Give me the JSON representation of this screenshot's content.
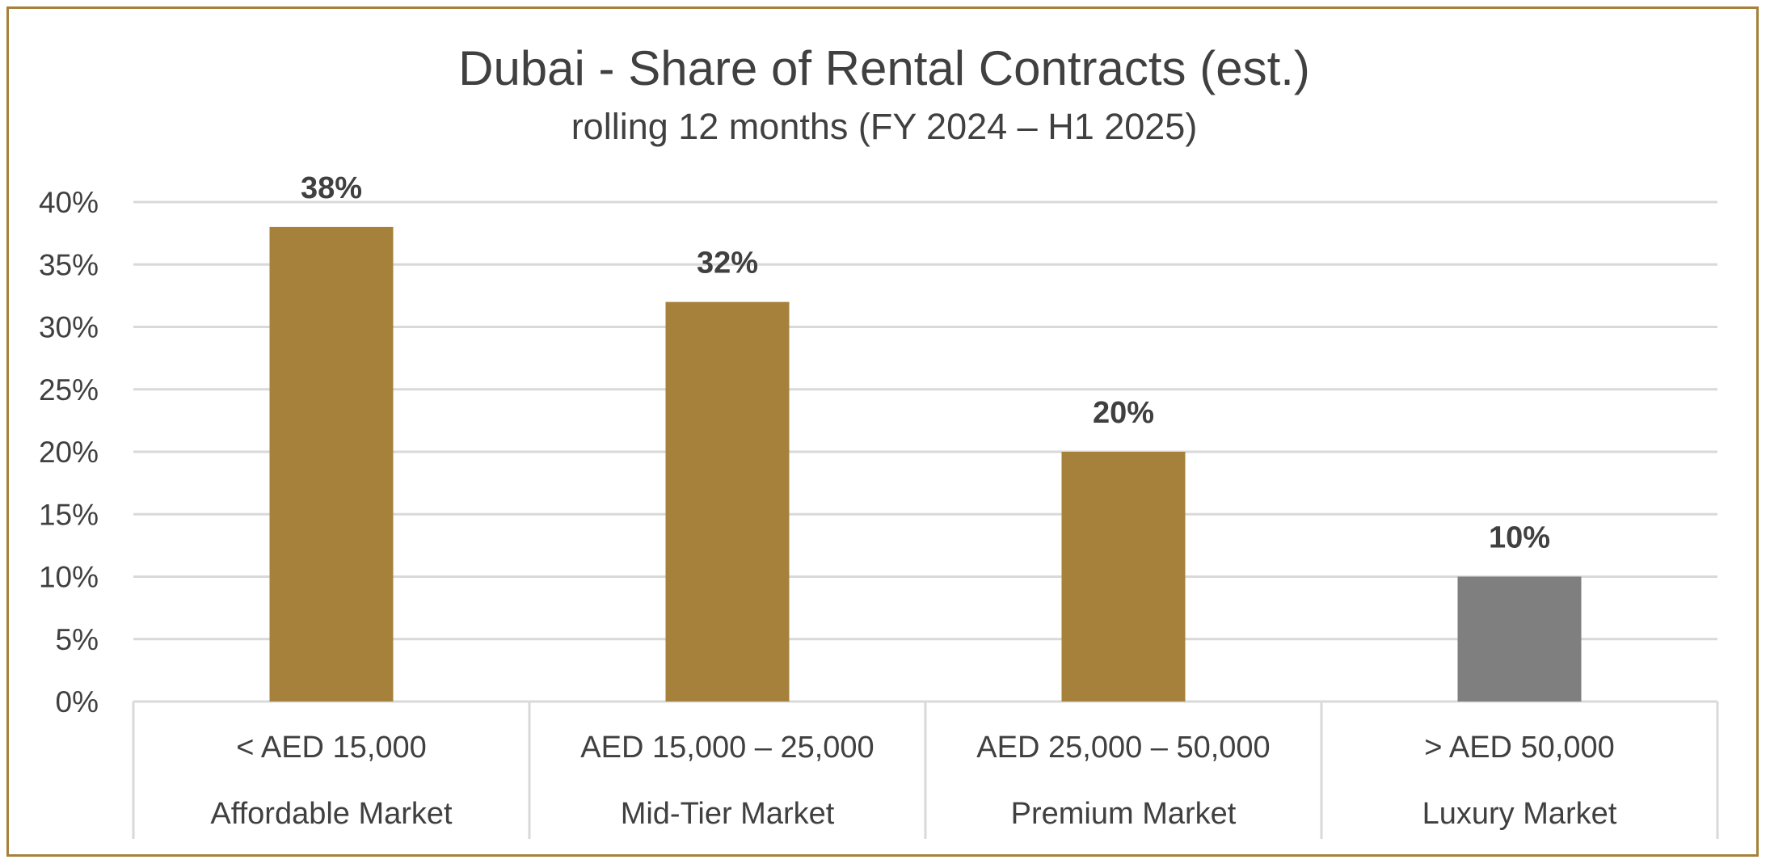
{
  "chart_data": {
    "type": "bar",
    "title": "Dubai - Share of Rental Contracts (est.)",
    "subtitle": "rolling 12 months (FY 2024 – H1 2025)",
    "categories": [
      {
        "range": "< AED 15,000",
        "segment": "Affordable Market"
      },
      {
        "range": "AED 15,000 – 25,000",
        "segment": "Mid-Tier Market"
      },
      {
        "range": "AED 25,000 – 50,000",
        "segment": "Premium Market"
      },
      {
        "range": "> AED 50,000",
        "segment": "Luxury Market"
      }
    ],
    "values": [
      38,
      32,
      20,
      10
    ],
    "data_labels": [
      "38%",
      "32%",
      "20%",
      "10%"
    ],
    "bar_colors": [
      "#a6813b",
      "#a6813b",
      "#a6813b",
      "#7f7f7f"
    ],
    "ylim": [
      0,
      40
    ],
    "yticks": [
      0,
      5,
      10,
      15,
      20,
      25,
      30,
      35,
      40
    ],
    "ytick_labels": [
      "0%",
      "5%",
      "10%",
      "15%",
      "20%",
      "25%",
      "30%",
      "35%",
      "40%"
    ],
    "grid": true,
    "legend": "none"
  },
  "colors": {
    "frame": "#a6813b",
    "gridline": "#d9d9d9",
    "text": "#404040"
  }
}
